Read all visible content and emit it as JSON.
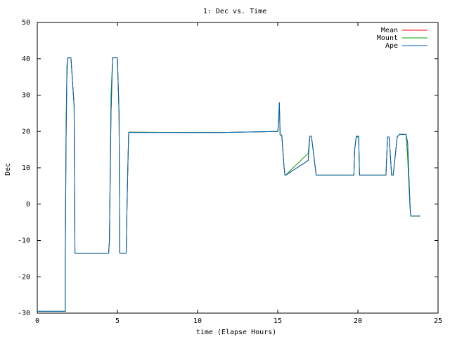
{
  "chart_data": {
    "type": "line",
    "title": "1: Dec vs. Time",
    "xlabel": "time (Elapse Hours)",
    "ylabel": "Dec",
    "xlim": [
      0,
      25
    ],
    "ylim": [
      -30,
      50
    ],
    "xticks": [
      0,
      5,
      10,
      15,
      20,
      25
    ],
    "yticks": [
      -30,
      -20,
      -10,
      0,
      10,
      20,
      30,
      40,
      50
    ],
    "grid": false,
    "legend_position": "top-right",
    "series": [
      {
        "name": "Mean",
        "color": "#ff0000",
        "x": [
          0,
          1.75,
          1.75,
          1.8,
          1.85,
          1.9,
          1.95,
          2.0,
          2.1,
          2.3,
          2.35,
          2.4,
          4.45,
          4.5,
          4.6,
          4.7,
          4.75,
          4.8,
          5.0,
          5.1,
          5.15,
          5.55,
          5.6,
          5.65,
          5.7,
          11.3,
          15.0,
          15.05,
          15.1,
          15.15,
          15.25,
          15.4,
          15.45,
          15.5,
          16.9,
          17.0,
          17.05,
          17.1,
          17.4,
          17.45,
          17.5,
          19.75,
          19.8,
          19.9,
          20.0,
          20.05,
          20.1,
          21.75,
          21.85,
          21.95,
          22.1,
          22.2,
          22.45,
          22.6,
          22.65,
          23.0,
          23.1,
          23.25,
          23.3,
          23.9
        ],
        "y": [
          -29.5,
          -29.5,
          -14,
          18,
          37,
          40.3,
          40.3,
          40.3,
          40.3,
          27,
          -13.5,
          -13.5,
          -13.5,
          -10,
          25,
          40.3,
          40.3,
          40.3,
          40.3,
          25,
          -13.5,
          -13.5,
          0,
          10,
          19.8,
          19.7,
          20,
          22,
          28,
          19,
          19,
          10,
          8,
          8,
          12,
          18.7,
          18.7,
          18.7,
          8,
          8,
          8,
          8,
          15,
          18.7,
          18.7,
          18.7,
          8,
          8,
          18.5,
          18.5,
          8,
          8,
          18.5,
          19.2,
          19.2,
          19.2,
          17,
          0,
          -3.3,
          -3.3
        ]
      },
      {
        "name": "Mount",
        "color": "#00a000",
        "x": [
          0,
          1.75,
          1.75,
          1.8,
          1.85,
          1.9,
          1.95,
          2.0,
          2.1,
          2.3,
          2.35,
          2.4,
          4.45,
          4.5,
          4.6,
          4.7,
          4.75,
          4.8,
          5.0,
          5.1,
          5.15,
          5.55,
          5.6,
          5.65,
          5.7,
          11.3,
          15.0,
          15.05,
          15.1,
          15.15,
          15.25,
          15.4,
          15.45,
          15.5,
          16.9,
          17.0,
          17.05,
          17.1,
          17.4,
          17.45,
          17.5,
          19.75,
          19.8,
          19.9,
          20.0,
          20.05,
          20.1,
          21.75,
          21.85,
          21.95,
          22.1,
          22.2,
          22.45,
          22.6,
          22.65,
          23.0,
          23.1,
          23.25,
          23.3,
          23.9
        ],
        "y": [
          -29.5,
          -29.5,
          -12,
          23,
          35,
          40.3,
          40.3,
          40.3,
          40.3,
          27,
          -13.5,
          -13.5,
          -13.5,
          -10,
          30,
          40.3,
          40.3,
          40.3,
          40.3,
          25,
          -13.5,
          -13.5,
          0,
          10,
          19.8,
          19.7,
          20,
          22,
          28,
          19,
          19,
          10,
          8,
          8,
          14,
          18.7,
          18.7,
          18.7,
          8,
          8,
          8,
          8,
          15,
          18.7,
          18.7,
          18.7,
          8,
          8,
          18.5,
          18.5,
          8,
          8,
          18.5,
          19.2,
          19.2,
          19.2,
          13,
          -1,
          -3.3,
          -3.3
        ]
      },
      {
        "name": "Ape",
        "color": "#0060c0",
        "x": [
          0,
          1.75,
          1.75,
          1.8,
          1.85,
          1.9,
          1.95,
          2.0,
          2.1,
          2.3,
          2.35,
          2.4,
          4.45,
          4.5,
          4.6,
          4.7,
          4.75,
          4.8,
          5.0,
          5.1,
          5.15,
          5.55,
          5.6,
          5.65,
          5.7,
          11.3,
          15.0,
          15.05,
          15.1,
          15.15,
          15.25,
          15.4,
          15.45,
          15.5,
          16.9,
          17.0,
          17.05,
          17.1,
          17.4,
          17.45,
          17.5,
          19.75,
          19.8,
          19.9,
          20.0,
          20.05,
          20.1,
          21.75,
          21.85,
          21.95,
          22.1,
          22.2,
          22.45,
          22.6,
          22.65,
          23.0,
          23.1,
          23.25,
          23.3,
          23.9
        ],
        "y": [
          -29.5,
          -29.5,
          -14,
          18,
          38,
          40.3,
          40.3,
          40.3,
          40.3,
          27,
          -13.5,
          -13.5,
          -13.5,
          -10,
          25,
          40.3,
          40.3,
          40.3,
          40.3,
          25,
          -13.5,
          -13.5,
          0,
          10,
          19.7,
          19.7,
          20,
          22,
          28,
          19,
          19,
          10,
          8,
          8,
          12,
          18.7,
          18.7,
          18.7,
          8,
          8,
          8,
          8,
          15,
          18.5,
          18.5,
          18.5,
          8,
          8,
          18.5,
          18.5,
          8,
          8,
          18.5,
          19.2,
          19.2,
          19.2,
          17,
          0,
          -3.3,
          -3.3
        ]
      }
    ]
  }
}
